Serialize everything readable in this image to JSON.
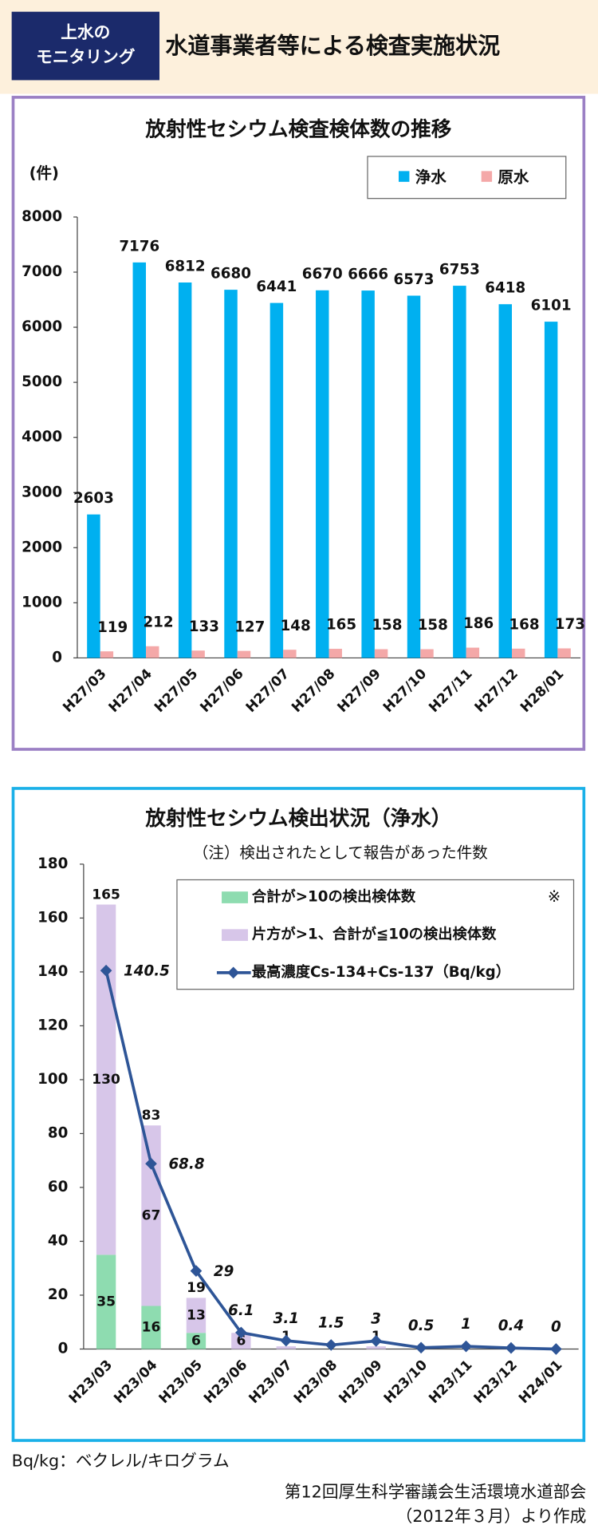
{
  "header": {
    "badge": [
      "上水の",
      "モニタリング"
    ],
    "title": "水道事業者等による検査実施状況"
  },
  "chart_data": [
    {
      "type": "bar",
      "title": "放射性セシウム検査検体数の推移",
      "y_label": "(件)",
      "categories": [
        "H27/03",
        "H27/04",
        "H27/05",
        "H27/06",
        "H27/07",
        "H27/08",
        "H27/09",
        "H27/10",
        "H27/11",
        "H27/12",
        "H28/01"
      ],
      "series": [
        {
          "name": "浄水",
          "color": "#00b0f0",
          "values": [
            2603,
            7176,
            6812,
            6680,
            6441,
            6670,
            6666,
            6573,
            6753,
            6418,
            6101
          ]
        },
        {
          "name": "原水",
          "color": "#f4a8a8",
          "values": [
            119,
            212,
            133,
            127,
            148,
            165,
            158,
            158,
            186,
            168,
            173
          ]
        }
      ],
      "ylim": [
        0,
        8000
      ],
      "yticks": [
        0,
        1000,
        2000,
        3000,
        4000,
        5000,
        6000,
        7000,
        8000
      ],
      "legend": "top-right"
    },
    {
      "type": "bar",
      "stacked": true,
      "title": "放射性セシウム検出状況（浄水）",
      "subtitle": "（注）検出されたとして報告があった件数",
      "legend_note": "※",
      "categories": [
        "H23/03",
        "H23/04",
        "H23/05",
        "H23/06",
        "H23/07",
        "H23/08",
        "H23/09",
        "H23/10",
        "H23/11",
        "H23/12",
        "H24/01"
      ],
      "series": [
        {
          "name": "合計が>10の検出検体数",
          "color": "#8edcb0",
          "values": [
            35,
            16,
            6,
            null,
            null,
            null,
            null,
            null,
            null,
            null,
            null
          ]
        },
        {
          "name": "片方が>1、合計が≦10の検出検体数",
          "color": "#d7c6e9",
          "values": [
            130,
            67,
            13,
            6,
            1,
            null,
            1,
            null,
            null,
            null,
            null
          ]
        },
        {
          "name": "最高濃度Cs-134+Cs-137（Bq/kg）",
          "type": "line",
          "color": "#2e5597",
          "values": [
            140.5,
            68.8,
            29,
            6.1,
            3.1,
            1.5,
            3,
            0.5,
            1,
            0.4,
            0
          ]
        }
      ],
      "total_labels": [
        165,
        83,
        19,
        null,
        null,
        null,
        null,
        null,
        null,
        null,
        null
      ],
      "ylim": [
        0,
        180
      ],
      "yticks": [
        0,
        20,
        40,
        60,
        80,
        100,
        120,
        140,
        160,
        180
      ],
      "legend": "top-right"
    }
  ],
  "footer": {
    "note": "Bq/kg：ベクレル/キログラム",
    "source": [
      "第12回厚生科学審議会生活環境水道部会",
      "（2012年３月）より作成"
    ]
  }
}
